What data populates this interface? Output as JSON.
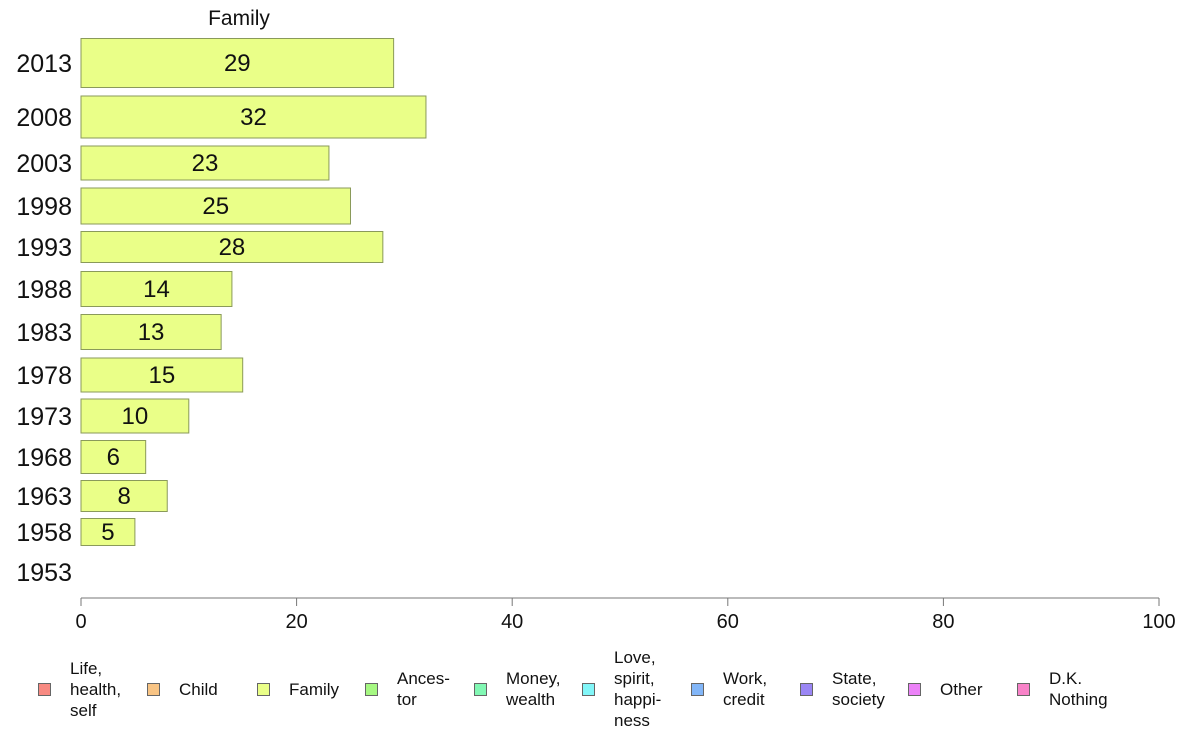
{
  "chart_data": {
    "type": "bar",
    "orientation": "horizontal",
    "title": "Family",
    "categories": [
      "2013",
      "2008",
      "2003",
      "1998",
      "1993",
      "1988",
      "1983",
      "1978",
      "1973",
      "1968",
      "1963",
      "1958",
      "1953"
    ],
    "series": [
      {
        "name": "Family",
        "values": [
          29,
          32,
          23,
          25,
          28,
          14,
          13,
          15,
          10,
          6,
          8,
          5,
          null
        ],
        "color": "#eaff88"
      }
    ],
    "xlim": [
      0,
      100
    ],
    "xticks": [
      0,
      20,
      40,
      60,
      80,
      100
    ],
    "grid": false,
    "legend_position": "bottom"
  },
  "legend": [
    {
      "label": "Life,\nhealth,\nself",
      "color": "#f88a82"
    },
    {
      "label": "Child",
      "color": "#f8c484"
    },
    {
      "label": "Family",
      "color": "#eaff88"
    },
    {
      "label": "Ances-\ntor",
      "color": "#a6f882"
    },
    {
      "label": "Money,\nwealth",
      "color": "#82f8b4"
    },
    {
      "label": "Love,\nspirit,\nhappi-\nness",
      "color": "#82f6f8"
    },
    {
      "label": "Work,\ncredit",
      "color": "#82b6f8"
    },
    {
      "label": "State,\nsociety",
      "color": "#9a86f4"
    },
    {
      "label": "Other",
      "color": "#ec82f8"
    },
    {
      "label": "D.K.\nNothing",
      "color": "#f882c8"
    }
  ]
}
